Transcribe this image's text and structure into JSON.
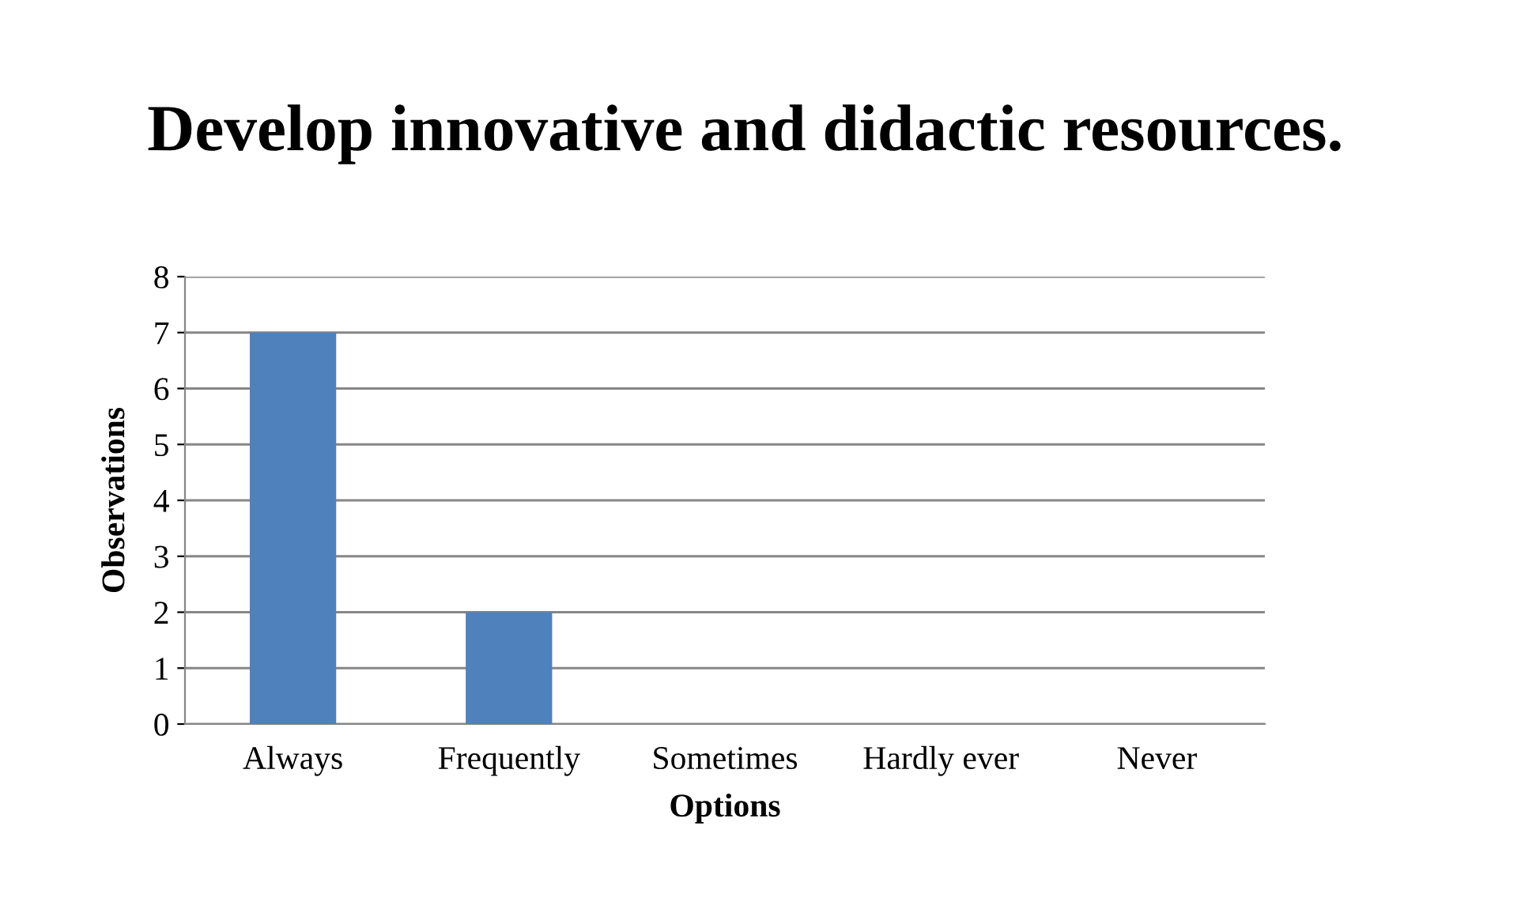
{
  "chart_data": {
    "type": "bar",
    "title": "Develop innovative and didactic resources.",
    "xlabel": "Options",
    "ylabel": "Observations",
    "categories": [
      "Always",
      "Frequently",
      "Sometimes",
      "Hardly ever",
      "Never"
    ],
    "values": [
      7,
      2,
      0,
      0,
      0
    ],
    "color": "#4f81bd",
    "ylim": [
      0,
      8
    ],
    "yticks": [
      0,
      1,
      2,
      3,
      4,
      5,
      6,
      7,
      8
    ],
    "grid": "y",
    "legend": false
  }
}
